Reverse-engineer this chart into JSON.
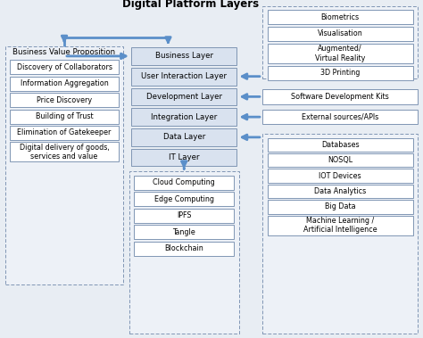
{
  "title": "Digital Platform Layers",
  "bg_color": "#e8edf3",
  "box_fill": "#d9e2ef",
  "box_edge": "#8096b4",
  "white_fill": "#ffffff",
  "dashed_edge": "#8096b4",
  "arrow_color": "#5b8fc9",
  "center_layers": [
    "Business Layer",
    "User Interaction Layer",
    "Development Layer",
    "Integration Layer",
    "Data Layer",
    "IT Layer"
  ],
  "left_group_title": "Business Value Proposition",
  "left_items": [
    "Discovery of Collaborators",
    "Information Aggregation",
    "Price Discovery",
    "Building of Trust",
    "Elimination of Gatekeeper",
    "Digital delivery of goods,\nservices and value"
  ],
  "top_right_items": [
    "Biometrics",
    "Visualisation",
    "Augmented/\nVirtual Reality",
    "3D Printing"
  ],
  "mid_right_items": [
    "Software Development Kits",
    "External sources/APIs"
  ],
  "bottom_right_items": [
    "Databases",
    "NOSQL",
    "IOT Devices",
    "Data Analytics",
    "Big Data",
    "Machine Learning /\nArtificial Intelligence"
  ],
  "bottom_center_items": [
    "Cloud Computing",
    "Edge Computing",
    "IPFS",
    "Tangle",
    "Blockchain"
  ]
}
